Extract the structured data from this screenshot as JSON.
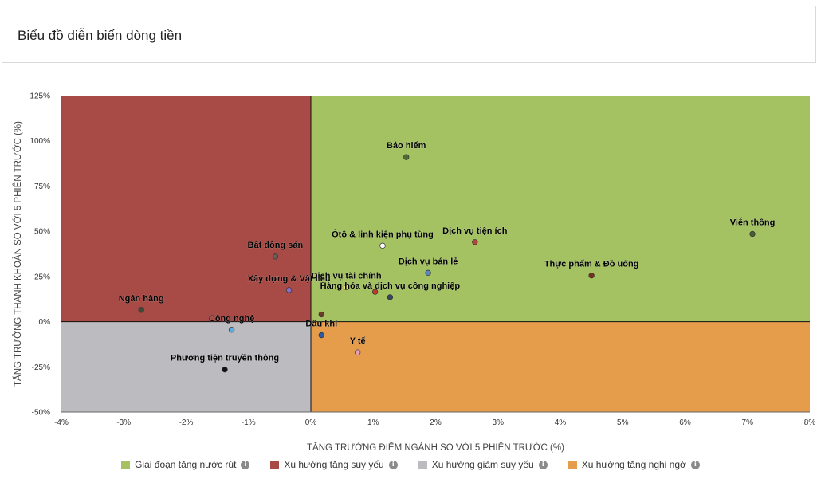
{
  "header": {
    "title": "Biểu đồ diễn biến dòng tiền"
  },
  "chart_data": {
    "type": "scatter",
    "xlabel": "TĂNG TRƯỞNG ĐIỂM NGÀNH SO VỚI 5 PHIÊN TRƯỚC (%)",
    "ylabel": "TĂNG TRƯỞNG THANH KHOẢN SO VỚI 5 PHIÊN TRƯỚC (%)",
    "xlim": [
      -4,
      8
    ],
    "ylim": [
      -50,
      125
    ],
    "x_ticks": [
      -4,
      -3,
      -2,
      -1,
      0,
      1,
      2,
      3,
      4,
      5,
      6,
      7,
      8
    ],
    "x_tick_labels": [
      "-4%",
      "-3%",
      "-2%",
      "-1%",
      "0%",
      "1%",
      "2%",
      "3%",
      "4%",
      "5%",
      "6%",
      "7%",
      "8%"
    ],
    "y_ticks": [
      -50,
      -25,
      0,
      25,
      50,
      75,
      100,
      125
    ],
    "y_tick_labels": [
      "-50%",
      "-25%",
      "0%",
      "25%",
      "50%",
      "75%",
      "100%",
      "125%"
    ],
    "quadrant_colors": {
      "top_right": "#a5c263",
      "top_left": "#a84a45",
      "bottom_left": "#bcbcc0",
      "bottom_right": "#e59c4b"
    },
    "points": [
      {
        "label": "Bảo hiểm",
        "x": 1.53,
        "y": 91,
        "color": "#4f6b37"
      },
      {
        "label": "Viễn thông",
        "x": 7.08,
        "y": 48.5,
        "color": "#4a5e33"
      },
      {
        "label": "Dịch vụ tiện ích",
        "x": 2.63,
        "y": 44,
        "color": "#b5433d"
      },
      {
        "label": "Ôtô & linh kiện phụ tùng",
        "x": 1.15,
        "y": 42,
        "color": "#ffffff"
      },
      {
        "label": "Bất động sản",
        "x": -0.57,
        "y": 36,
        "color": "#6b5a55"
      },
      {
        "label": "Dịch vụ bán lẻ",
        "x": 1.88,
        "y": 27,
        "color": "#5a86c4"
      },
      {
        "label": "Thực phẩm & Đồ uống",
        "x": 4.5,
        "y": 25.5,
        "color": "#7a2e1e"
      },
      {
        "label": "Xây dựng & Vật liệu",
        "x": -0.35,
        "y": 17.5,
        "color": "#8a6fc8"
      },
      {
        "label": "Dịch vụ tài chính",
        "x": 0.57,
        "y": 19,
        "color": "#f6e15c"
      },
      {
        "label": "",
        "x": 1.03,
        "y": 16.5,
        "color": "#c0392b"
      },
      {
        "label": "Hàng hóa và dịch vụ công nghiệp",
        "x": 1.27,
        "y": 13.5,
        "color": "#34495e"
      },
      {
        "label": "Ngân hàng",
        "x": -2.72,
        "y": 6.5,
        "color": "#3d4a36"
      },
      {
        "label": "",
        "x": 0.17,
        "y": 4,
        "color": "#6a3a2a"
      },
      {
        "label": "Công nghệ",
        "x": -1.27,
        "y": -4.5,
        "color": "#5dade2"
      },
      {
        "label": "Dầu khí",
        "x": 0.17,
        "y": -7.5,
        "color": "#2d5aa8"
      },
      {
        "label": "Y tế",
        "x": 0.75,
        "y": -17,
        "color": "#e8a0b4"
      },
      {
        "label": "Phương tiện truyền thông",
        "x": -1.38,
        "y": -26.5,
        "color": "#111111"
      }
    ]
  },
  "legend": [
    {
      "label": "Giai đoạn tăng nước rút",
      "color": "#a5c263",
      "info_icon": "info-icon"
    },
    {
      "label": "Xu hướng tăng suy yếu",
      "color": "#a84a45",
      "info_icon": "info-icon"
    },
    {
      "label": "Xu hướng giảm suy yếu",
      "color": "#bcbcc0",
      "info_icon": "info-icon"
    },
    {
      "label": "Xu hướng tăng nghi ngờ",
      "color": "#e59c4b",
      "info_icon": "info-icon"
    }
  ]
}
